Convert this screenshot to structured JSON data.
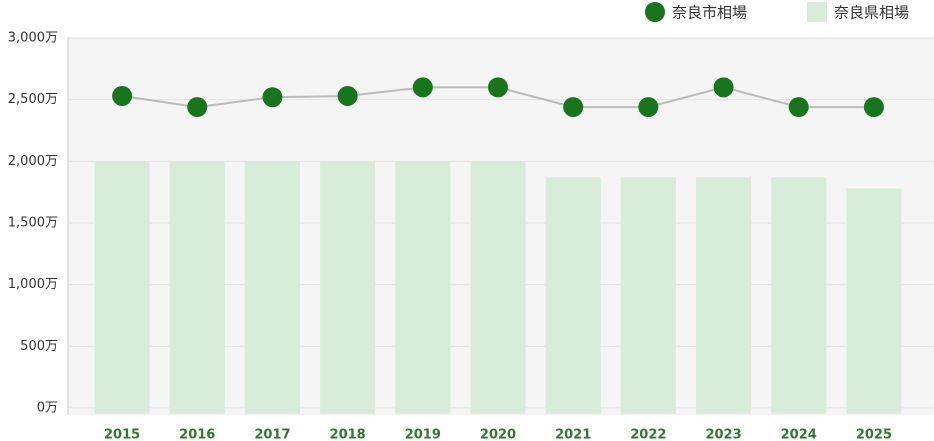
{
  "chart_data": {
    "type": "bar-line",
    "categories": [
      "2015",
      "2016",
      "2017",
      "2018",
      "2019",
      "2020",
      "2021",
      "2022",
      "2023",
      "2024",
      "2025"
    ],
    "series": [
      {
        "name": "奈良市相場",
        "type": "line",
        "color": "#17761c",
        "values": [
          2530,
          2440,
          2520,
          2530,
          2600,
          2600,
          2440,
          2440,
          2600,
          2440,
          2440
        ]
      },
      {
        "name": "奈良県相場",
        "type": "bar",
        "color": "#d7ecd9",
        "values": [
          2000,
          2000,
          2000,
          2000,
          2000,
          2000,
          1870,
          1870,
          1870,
          1870,
          1780
        ]
      }
    ],
    "ylim": [
      0,
      3000
    ],
    "yticks": [
      {
        "value": 0,
        "label": "0万"
      },
      {
        "value": 500,
        "label": "500万"
      },
      {
        "value": 1000,
        "label": "1,000万"
      },
      {
        "value": 1500,
        "label": "1,500万"
      },
      {
        "value": 2000,
        "label": "2,000万"
      },
      {
        "value": 2500,
        "label": "2,500万"
      },
      {
        "value": 3000,
        "label": "3,000万"
      }
    ],
    "grid": true
  }
}
